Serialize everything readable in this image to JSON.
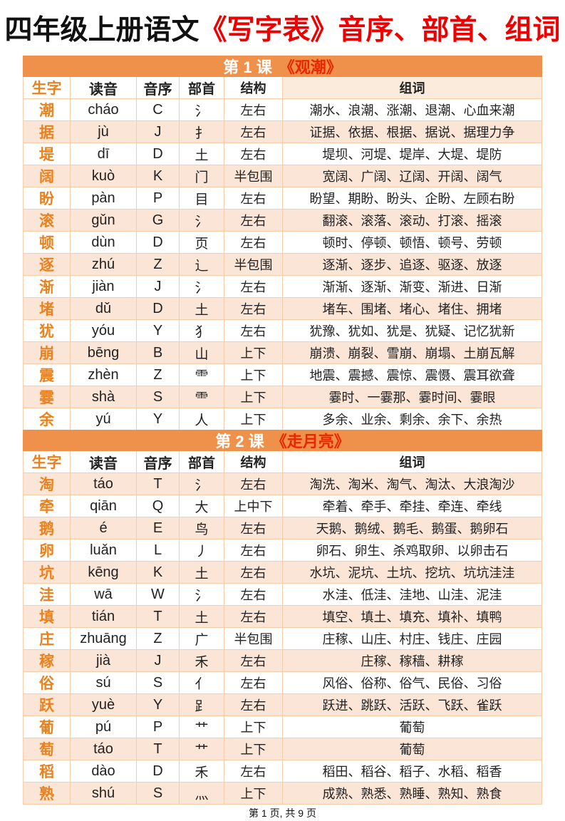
{
  "title": {
    "black": "四年级上册语文",
    "red": "《写字表》音序、部首、组词"
  },
  "columns": [
    "生字",
    "读音",
    "音序",
    "部首",
    "结构",
    "组词"
  ],
  "sections": [
    {
      "header": {
        "lesson": "第 1 课",
        "book": "《观潮》"
      },
      "zebra_start": "white",
      "rows": [
        {
          "char": "潮",
          "pinyin": "cháo",
          "initial": "C",
          "radical": "氵",
          "structure": "左右",
          "words": "潮水、浪潮、涨潮、退潮、心血来潮"
        },
        {
          "char": "据",
          "pinyin": "jù",
          "initial": "J",
          "radical": "扌",
          "structure": "左右",
          "words": "证据、依据、根据、据说、据理力争"
        },
        {
          "char": "堤",
          "pinyin": "dī",
          "initial": "D",
          "radical": "土",
          "structure": "左右",
          "words": "堤坝、河堤、堤岸、大堤、堤防"
        },
        {
          "char": "阔",
          "pinyin": "kuò",
          "initial": "K",
          "radical": "门",
          "structure": "半包围",
          "words": "宽阔、广阔、辽阔、开阔、阔气"
        },
        {
          "char": "盼",
          "pinyin": "pàn",
          "initial": "P",
          "radical": "目",
          "structure": "左右",
          "words": "盼望、期盼、盼头、企盼、左顾右盼"
        },
        {
          "char": "滚",
          "pinyin": "gǔn",
          "initial": "G",
          "radical": "氵",
          "structure": "左右",
          "words": "翻滚、滚落、滚动、打滚、摇滚"
        },
        {
          "char": "顿",
          "pinyin": "dùn",
          "initial": "D",
          "radical": "页",
          "structure": "左右",
          "words": "顿时、停顿、顿悟、顿号、劳顿"
        },
        {
          "char": "逐",
          "pinyin": "zhú",
          "initial": "Z",
          "radical": "辶",
          "structure": "半包围",
          "words": "逐渐、逐步、追逐、驱逐、放逐"
        },
        {
          "char": "渐",
          "pinyin": "jiàn",
          "initial": "J",
          "radical": "氵",
          "structure": "左右",
          "words": "渐渐、逐渐、渐变、渐进、日渐"
        },
        {
          "char": "堵",
          "pinyin": "dǔ",
          "initial": "D",
          "radical": "土",
          "structure": "左右",
          "words": "堵车、围堵、堵心、堵住、拥堵"
        },
        {
          "char": "犹",
          "pinyin": "yóu",
          "initial": "Y",
          "radical": "犭",
          "structure": "左右",
          "words": "犹豫、犹如、犹是、犹疑、记忆犹新"
        },
        {
          "char": "崩",
          "pinyin": "bēng",
          "initial": "B",
          "radical": "山",
          "structure": "上下",
          "words": "崩溃、崩裂、雪崩、崩塌、土崩瓦解"
        },
        {
          "char": "震",
          "pinyin": "zhèn",
          "initial": "Z",
          "radical": "⻗",
          "structure": "上下",
          "words": "地震、震撼、震惊、震慑、震耳欲聋"
        },
        {
          "char": "霎",
          "pinyin": "shà",
          "initial": "S",
          "radical": "⻗",
          "structure": "上下",
          "words": "霎时、一霎那、霎时间、霎眼"
        },
        {
          "char": "余",
          "pinyin": "yú",
          "initial": "Y",
          "radical": "人",
          "structure": "上下",
          "words": "多余、业余、剩余、余下、余热"
        }
      ]
    },
    {
      "header": {
        "lesson": "第 2 课",
        "book": "《走月亮》"
      },
      "zebra_start": "shaded",
      "rows": [
        {
          "char": "淘",
          "pinyin": "táo",
          "initial": "T",
          "radical": "氵",
          "structure": "左右",
          "words": "淘洗、淘米、淘气、淘汰、大浪淘沙"
        },
        {
          "char": "牵",
          "pinyin": "qiān",
          "initial": "Q",
          "radical": "大",
          "structure": "上中下",
          "words": "牵着、牵手、牵挂、牵连、牵线"
        },
        {
          "char": "鹅",
          "pinyin": "é",
          "initial": "E",
          "radical": "鸟",
          "structure": "左右",
          "words": "天鹅、鹅绒、鹅毛、鹅蛋、鹅卵石"
        },
        {
          "char": "卵",
          "pinyin": "luǎn",
          "initial": "L",
          "radical": "丿",
          "structure": "左右",
          "words": "卵石、卵生、杀鸡取卵、以卵击石"
        },
        {
          "char": "坑",
          "pinyin": "kēng",
          "initial": "K",
          "radical": "土",
          "structure": "左右",
          "words": "水坑、泥坑、土坑、挖坑、坑坑洼洼"
        },
        {
          "char": "洼",
          "pinyin": "wā",
          "initial": "W",
          "radical": "氵",
          "structure": "左右",
          "words": "水洼、低洼、洼地、山洼、泥洼"
        },
        {
          "char": "填",
          "pinyin": "tián",
          "initial": "T",
          "radical": "土",
          "structure": "左右",
          "words": "填空、填土、填充、填补、填鸭"
        },
        {
          "char": "庄",
          "pinyin": "zhuāng",
          "initial": "Z",
          "radical": "广",
          "structure": "半包围",
          "words": "庄稼、山庄、村庄、钱庄、庄园"
        },
        {
          "char": "稼",
          "pinyin": "jià",
          "initial": "J",
          "radical": "禾",
          "structure": "左右",
          "words": "庄稼、稼穑、耕稼"
        },
        {
          "char": "俗",
          "pinyin": "sú",
          "initial": "S",
          "radical": "亻",
          "structure": "左右",
          "words": "风俗、俗称、俗气、民俗、习俗"
        },
        {
          "char": "跃",
          "pinyin": "yuè",
          "initial": "Y",
          "radical": "⻊",
          "structure": "左右",
          "words": "跃进、跳跃、活跃、飞跃、雀跃"
        },
        {
          "char": "葡",
          "pinyin": "pú",
          "initial": "P",
          "radical": "艹",
          "structure": "上下",
          "words": "葡萄"
        },
        {
          "char": "萄",
          "pinyin": "táo",
          "initial": "T",
          "radical": "艹",
          "structure": "上下",
          "words": "葡萄"
        },
        {
          "char": "稻",
          "pinyin": "dào",
          "initial": "D",
          "radical": "禾",
          "structure": "左右",
          "words": "稻田、稻谷、稻子、水稻、稻香"
        },
        {
          "char": "熟",
          "pinyin": "shú",
          "initial": "S",
          "radical": "灬",
          "structure": "上下",
          "words": "成熟、熟悉、熟睡、熟知、熟食"
        }
      ]
    }
  ],
  "footer": {
    "text": "第 1 页, 共 9 页"
  },
  "colors": {
    "accent_orange": "#f0914b",
    "row_shade": "#fbe5d6",
    "char_orange": "#e8821f",
    "title_red": "#ee0000",
    "section_title_red": "#e82600",
    "border": "#f6cda9"
  }
}
